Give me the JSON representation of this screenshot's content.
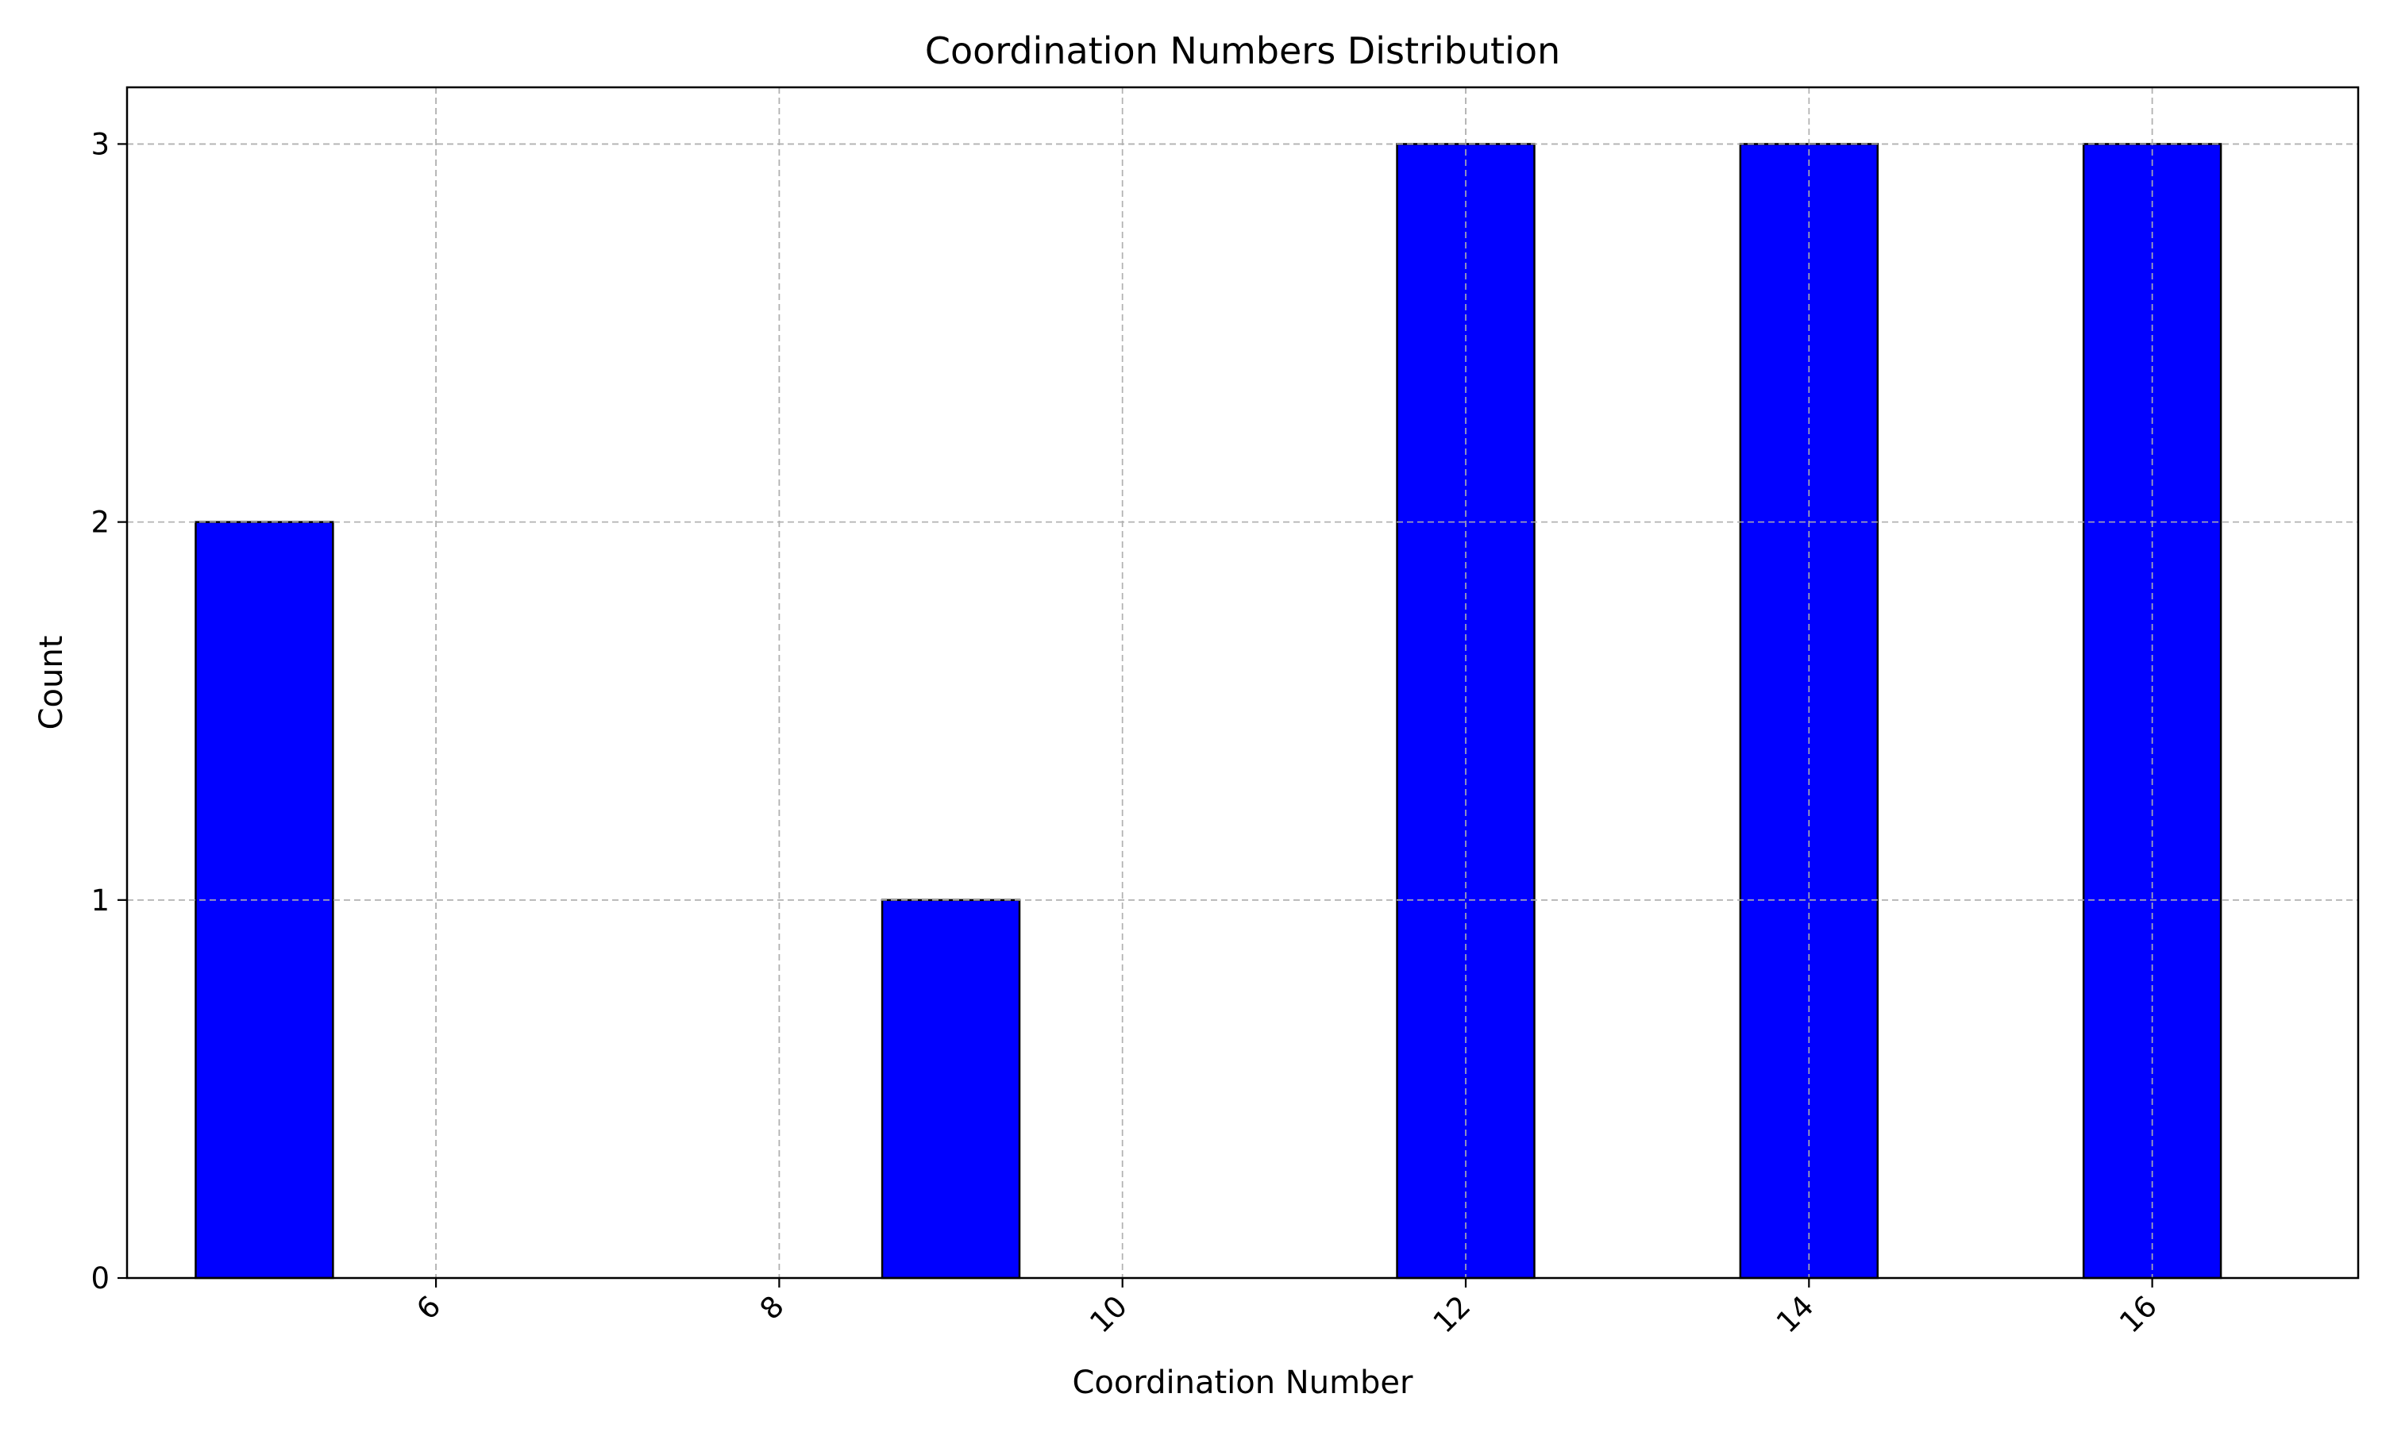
{
  "chart_data": {
    "type": "bar",
    "title": "Coordination Numbers Distribution",
    "xlabel": "Coordination Number",
    "ylabel": "Count",
    "x": [
      5,
      9,
      12,
      14,
      16
    ],
    "values": [
      2,
      1,
      3,
      3,
      3
    ],
    "bar_width": 0.8,
    "xlim": [
      4.2,
      17.2
    ],
    "ylim": [
      0,
      3.15
    ],
    "xticks": [
      6,
      8,
      10,
      12,
      14,
      16
    ],
    "yticks": [
      0,
      1,
      2,
      3
    ],
    "xtick_rotation": -45,
    "grid": true,
    "bar_color": "#0000ff",
    "edge_color": "#000000",
    "grid_color": "#b0b0b0"
  }
}
